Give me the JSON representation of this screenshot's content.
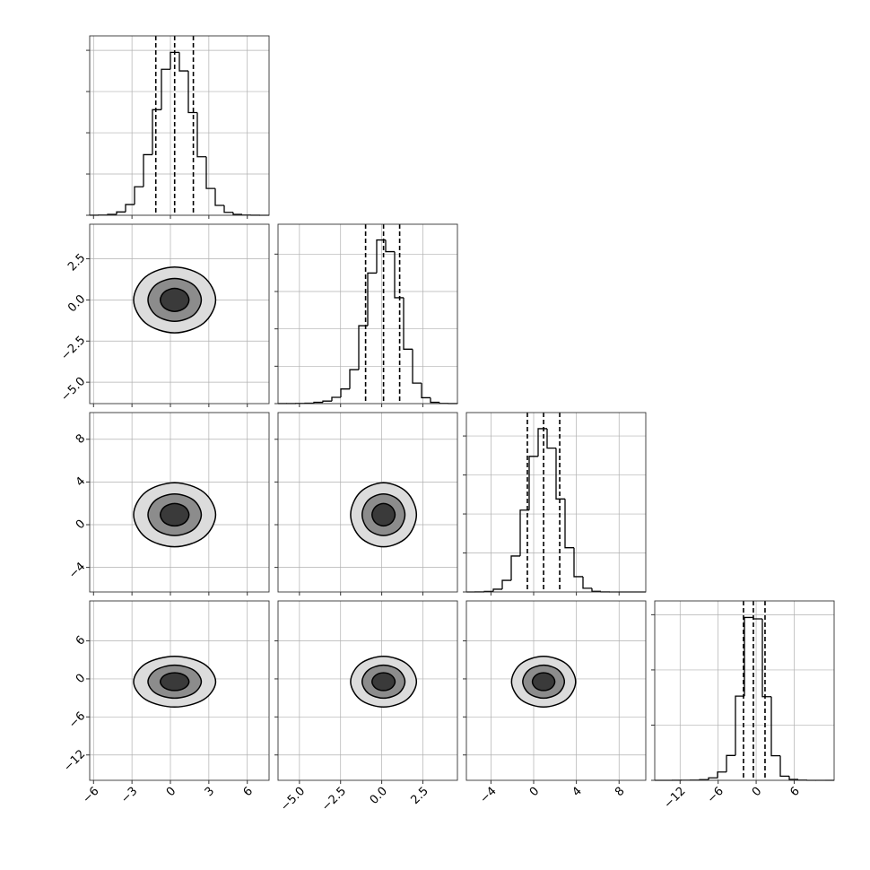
{
  "chart_data": {
    "type": "corner",
    "grid": true,
    "line_color": "#000000",
    "grid_color": "#b0b0b0",
    "contour_fills": [
      "#3a3a3a",
      "#8c8c8c",
      "#dcdcdc"
    ],
    "variables": [
      {
        "lim": [
          -6.3,
          7.7
        ],
        "ticks": [
          {
            "value": -6,
            "label": "−6"
          },
          {
            "value": -3,
            "label": "−3"
          },
          0,
          3,
          6
        ],
        "bins": [
          -6.3,
          -5.6,
          -4.9,
          -4.2,
          -3.5,
          -2.8,
          -2.1,
          -1.4,
          -0.7,
          0,
          0.7,
          1.4,
          2.1,
          2.8,
          3.5,
          4.2,
          4.9,
          5.6,
          6.3,
          7.0,
          7.7
        ],
        "counts": [
          1,
          5,
          20,
          80,
          260,
          690,
          1470,
          2560,
          3540,
          3950,
          3500,
          2490,
          1420,
          650,
          240,
          70,
          20,
          5,
          1,
          0
        ],
        "hist_ylim": [
          0,
          4350
        ],
        "hist_yticks": [
          0,
          1000,
          2000,
          3000,
          4000
        ],
        "quantiles": [
          -1.14,
          0.33,
          1.79
        ]
      },
      {
        "lim": [
          -6.3,
          4.6
        ],
        "ticks": [
          {
            "value": -5,
            "label": "−5.0"
          },
          {
            "value": -2.5,
            "label": "−2.5"
          },
          {
            "value": 0,
            "label": "0.0"
          },
          2.5
        ],
        "bins": [
          -6.3,
          -5.755,
          -5.21,
          -4.665,
          -4.12,
          -3.575,
          -3.03,
          -2.485,
          -1.94,
          -1.395,
          -0.85,
          -0.305,
          0.24,
          0.785,
          1.33,
          1.875,
          2.42,
          2.965,
          3.51,
          4.055,
          4.6
        ],
        "counts": [
          1,
          2,
          4,
          11,
          34,
          67,
          168,
          392,
          907,
          2083,
          3494,
          4379,
          4066,
          2834,
          1456,
          549,
          157,
          34,
          6,
          1
        ],
        "hist_ylim": [
          0,
          4800
        ],
        "hist_yticks": [
          0,
          1000,
          2000,
          3000,
          4000
        ],
        "quantiles": [
          -0.98,
          0.11,
          1.09
        ]
      },
      {
        "lim": [
          -6.3,
          10.5
        ],
        "ticks": [
          {
            "value": -4,
            "label": "−4"
          },
          0,
          4,
          8
        ],
        "bins": [
          -6.3,
          -5.46,
          -4.62,
          -3.78,
          -2.94,
          -2.1,
          -1.26,
          -0.42,
          0.42,
          1.26,
          2.1,
          2.94,
          3.78,
          4.62,
          5.46,
          6.3,
          7.14,
          7.98,
          8.82,
          9.66,
          10.5
        ],
        "counts": [
          0,
          2,
          13,
          71,
          297,
          922,
          2099,
          3477,
          4187,
          3689,
          2385,
          1134,
          392,
          95,
          17,
          2,
          0,
          0,
          0,
          0
        ],
        "hist_ylim": [
          0,
          4600
        ],
        "hist_yticks": [
          0,
          1000,
          2000,
          3000,
          4000
        ],
        "quantiles": [
          -0.59,
          0.93,
          2.44
        ]
      },
      {
        "lim": [
          -16,
          12.3
        ],
        "ticks": [
          {
            "value": -12,
            "label": "−12"
          },
          {
            "value": -6,
            "label": "−6"
          },
          0,
          6
        ],
        "bins": [
          -16,
          -14.585,
          -13.17,
          -11.755,
          -10.34,
          -8.925,
          -7.51,
          -6.095,
          -4.68,
          -3.265,
          -1.85,
          -0.435,
          0.98,
          2.395,
          3.81,
          5.225,
          6.64,
          8.055,
          9.47,
          10.885,
          12.3
        ],
        "counts": [
          0,
          0,
          2,
          3,
          8,
          22,
          90,
          300,
          900,
          3050,
          5900,
          5850,
          3030,
          890,
          150,
          30,
          6,
          1,
          0,
          0
        ],
        "hist_ylim": [
          0,
          6500
        ],
        "hist_yticks": [
          0,
          2000,
          4000,
          6000
        ],
        "quantiles": [
          -2.0,
          -0.44,
          1.4
        ]
      }
    ],
    "pairs": [
      {
        "x_var": 0,
        "y_var": 1,
        "contours": [
          {
            "x": [
              1.45,
              1.12,
              0.33,
              -0.46,
              -0.79,
              -0.46,
              0.33,
              1.12
            ],
            "y": [
              0,
              0.49,
              0.7,
              0.49,
              0,
              -0.49,
              -0.7,
              -0.49
            ]
          },
          {
            "x": [
              2.41,
              1.8,
              0.33,
              -1.14,
              -1.75,
              -1.14,
              0.33,
              1.8
            ],
            "y": [
              0,
              0.92,
              1.3,
              0.92,
              0,
              -0.92,
              -1.3,
              -0.92
            ]
          },
          {
            "x": [
              3.53,
              2.59,
              0.33,
              -1.93,
              -2.87,
              -1.93,
              0.33,
              2.59
            ],
            "y": [
              0,
              1.41,
              2.0,
              1.41,
              0,
              -1.41,
              -2.0,
              -1.41
            ]
          }
        ]
      },
      {
        "x_var": 0,
        "y_var": 2,
        "contours": [
          {
            "x": [
              1.45,
              1.12,
              0.33,
              -0.46,
              -0.79,
              -0.46,
              0.33,
              1.12
            ],
            "y": [
              0.93,
              1.67,
              1.98,
              1.67,
              0.93,
              0.19,
              -0.12,
              0.19
            ]
          },
          {
            "x": [
              2.41,
              1.8,
              0.33,
              -1.14,
              -1.75,
              -1.14,
              0.33,
              1.8
            ],
            "y": [
              0.93,
              2.31,
              2.88,
              2.31,
              0.93,
              -0.45,
              -1.02,
              -0.45
            ]
          },
          {
            "x": [
              3.53,
              2.59,
              0.33,
              -1.93,
              -2.87,
              -1.93,
              0.33,
              2.59
            ],
            "y": [
              0.93,
              3.05,
              3.93,
              3.05,
              0.93,
              -1.19,
              -2.07,
              -1.19
            ]
          }
        ]
      },
      {
        "x_var": 1,
        "y_var": 2,
        "contours": [
          {
            "x": [
              0.81,
              0.6,
              0.11,
              -0.38,
              -0.59,
              -0.38,
              0.11,
              0.6
            ],
            "y": [
              0.93,
              1.67,
              1.98,
              1.67,
              0.93,
              0.19,
              -0.12,
              0.19
            ]
          },
          {
            "x": [
              1.41,
              1.03,
              0.11,
              -0.81,
              -1.19,
              -0.81,
              0.11,
              1.03
            ],
            "y": [
              0.93,
              2.31,
              2.88,
              2.31,
              0.93,
              -0.45,
              -1.02,
              -0.45
            ]
          },
          {
            "x": [
              2.11,
              1.52,
              0.11,
              -1.3,
              -1.89,
              -1.3,
              0.11,
              1.52
            ],
            "y": [
              0.93,
              3.05,
              3.93,
              3.05,
              0.93,
              -1.19,
              -2.07,
              -1.19
            ]
          }
        ]
      },
      {
        "x_var": 0,
        "y_var": 3,
        "contours": [
          {
            "x": [
              1.45,
              1.12,
              0.33,
              -0.46,
              -0.79,
              -0.46,
              0.33,
              1.12
            ],
            "y": [
              -0.44,
              0.55,
              0.96,
              0.55,
              -0.44,
              -1.43,
              -1.84,
              -1.43
            ]
          },
          {
            "x": [
              2.41,
              1.8,
              0.33,
              -1.14,
              -1.75,
              -1.14,
              0.33,
              1.8
            ],
            "y": [
              -0.44,
              1.4,
              2.16,
              1.4,
              -0.44,
              -2.28,
              -3.04,
              -2.28
            ]
          },
          {
            "x": [
              3.53,
              2.59,
              0.33,
              -1.93,
              -2.87,
              -1.93,
              0.33,
              2.59
            ],
            "y": [
              -0.44,
              2.39,
              3.56,
              2.39,
              -0.44,
              -3.27,
              -4.44,
              -3.27
            ]
          }
        ]
      },
      {
        "x_var": 1,
        "y_var": 3,
        "contours": [
          {
            "x": [
              0.81,
              0.6,
              0.11,
              -0.38,
              -0.59,
              -0.38,
              0.11,
              0.6
            ],
            "y": [
              -0.44,
              0.55,
              0.96,
              0.55,
              -0.44,
              -1.43,
              -1.84,
              -1.43
            ]
          },
          {
            "x": [
              1.41,
              1.03,
              0.11,
              -0.81,
              -1.19,
              -0.81,
              0.11,
              1.03
            ],
            "y": [
              -0.44,
              1.4,
              2.16,
              1.4,
              -0.44,
              -2.28,
              -3.04,
              -2.28
            ]
          },
          {
            "x": [
              2.11,
              1.52,
              0.11,
              -1.3,
              -1.89,
              -1.3,
              0.11,
              1.52
            ],
            "y": [
              -0.44,
              2.39,
              3.56,
              2.39,
              -0.44,
              -3.27,
              -4.44,
              -3.27
            ]
          }
        ]
      },
      {
        "x_var": 2,
        "y_var": 3,
        "contours": [
          {
            "x": [
              1.98,
              1.67,
              0.93,
              0.19,
              -0.12,
              0.19,
              0.93,
              1.67
            ],
            "y": [
              -0.44,
              0.55,
              0.96,
              0.55,
              -0.44,
              -1.43,
              -1.84,
              -1.43
            ]
          },
          {
            "x": [
              2.88,
              2.31,
              0.93,
              -0.45,
              -1.02,
              -0.45,
              0.93,
              2.31
            ],
            "y": [
              -0.44,
              1.4,
              2.16,
              1.4,
              -0.44,
              -2.28,
              -3.04,
              -2.28
            ]
          },
          {
            "x": [
              3.93,
              3.05,
              0.93,
              -1.19,
              -2.07,
              -1.19,
              0.93,
              3.05
            ],
            "y": [
              -0.44,
              2.39,
              3.56,
              2.39,
              -0.44,
              -3.27,
              -4.44,
              -3.27
            ]
          }
        ]
      }
    ]
  }
}
